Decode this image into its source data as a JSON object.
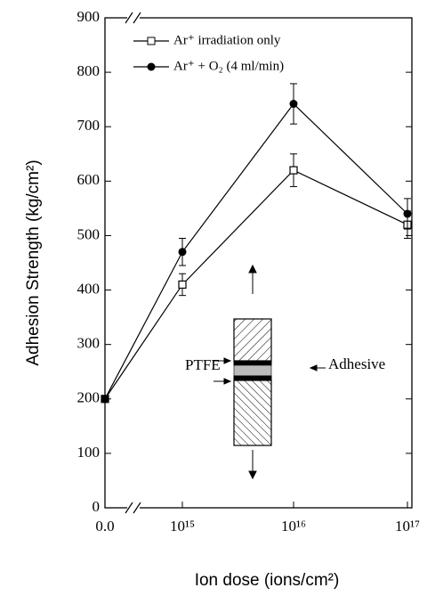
{
  "chart_data": {
    "type": "line",
    "xlabel": "Ion dose (ions/cm²)",
    "ylabel": "Adhesion Strength (kg/cm²)",
    "categories": [
      "0.0",
      "10¹⁵",
      "10¹⁶",
      "10¹⁷"
    ],
    "series": [
      {
        "name": "Ar⁺ irradiation only",
        "color": "#000000",
        "marker": "open-square",
        "values": [
          200,
          410,
          620,
          520
        ],
        "errors": [
          null,
          20,
          30,
          25
        ]
      },
      {
        "name": "Ar⁺ + O₂ (4 ml/min)",
        "color": "#000000",
        "marker": "filled-circle",
        "values": [
          200,
          470,
          742,
          540
        ],
        "errors": [
          null,
          25,
          37,
          28
        ]
      }
    ],
    "ylim": [
      0,
      900
    ],
    "yticks": [
      0,
      100,
      200,
      300,
      400,
      500,
      600,
      700,
      800,
      900
    ],
    "legend": "upper left",
    "annotations": [
      "PTFE",
      "Adhesive"
    ]
  }
}
